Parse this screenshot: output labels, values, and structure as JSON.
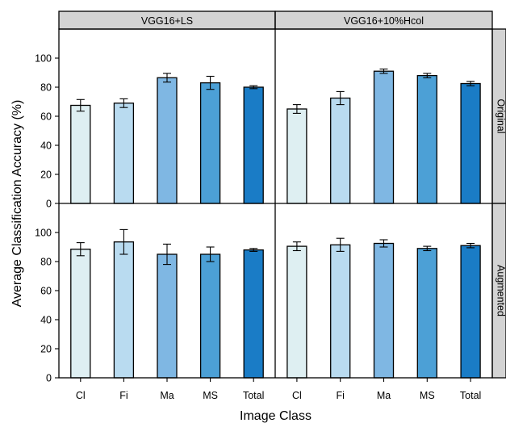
{
  "chart_data": {
    "type": "bar",
    "xlabel": "Image Class",
    "ylabel": "Average Classification Accuracy (%)",
    "categories": [
      "Cl",
      "Fi",
      "Ma",
      "MS",
      "Total"
    ],
    "ylim": [
      0,
      120
    ],
    "yticks": [
      "0",
      "20",
      "40",
      "60",
      "80",
      "100"
    ],
    "yticks_values": [
      0,
      20,
      40,
      60,
      80,
      100
    ],
    "column_facets": [
      "VGG16+LS",
      "VGG16+10%Hcol"
    ],
    "row_facets": [
      "Original",
      "Augmented"
    ],
    "bar_colors": [
      "#deeff2",
      "#b9dbf0",
      "#7fb7e3",
      "#4ca0d6",
      "#1a7cc6"
    ],
    "panels": [
      {
        "column": "VGG16+LS",
        "row": "Original",
        "values": [
          67.5,
          69,
          86.5,
          83,
          80
        ],
        "errors": [
          4,
          3,
          3,
          4.5,
          1
        ]
      },
      {
        "column": "VGG16+10%Hcol",
        "row": "Original",
        "values": [
          65,
          72.5,
          91,
          88,
          82.5
        ],
        "errors": [
          3,
          4.5,
          1.5,
          1.5,
          1.5
        ]
      },
      {
        "column": "VGG16+LS",
        "row": "Augmented",
        "values": [
          88.5,
          93.5,
          85,
          85,
          88
        ],
        "errors": [
          4.5,
          8.5,
          7,
          5,
          1
        ]
      },
      {
        "column": "VGG16+10%Hcol",
        "row": "Augmented",
        "values": [
          90.5,
          91.5,
          92.5,
          89,
          91
        ],
        "errors": [
          3,
          4.5,
          2.5,
          1.5,
          1.5
        ]
      }
    ]
  }
}
